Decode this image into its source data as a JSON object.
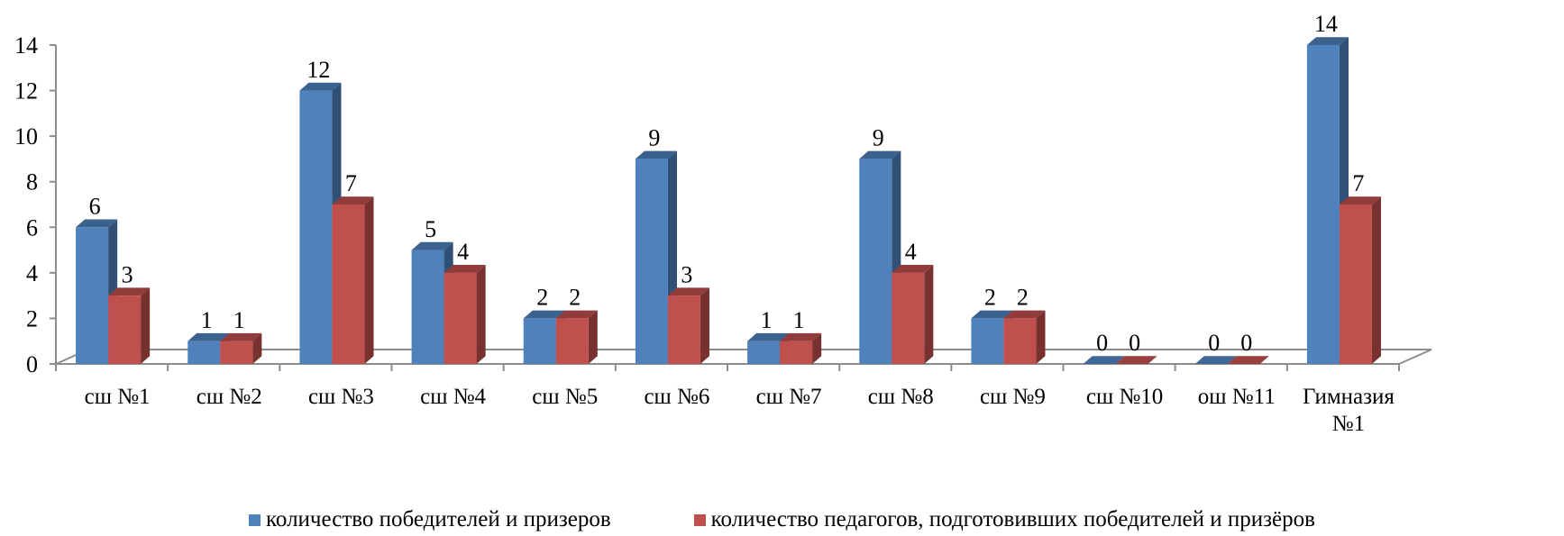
{
  "chart_data": {
    "type": "bar",
    "style": "3d-clustered-column",
    "title": "",
    "xlabel": "",
    "ylabel": "",
    "ylim": [
      0,
      14
    ],
    "yticks": [
      0,
      2,
      4,
      6,
      8,
      10,
      12,
      14
    ],
    "grid": false,
    "legend_position": "bottom",
    "categories": [
      "сш №1",
      "сш №2",
      "сш №3",
      "сш №4",
      "сш №5",
      "сш №6",
      "сш №7",
      "сш №8",
      "сш №9",
      "сш №10",
      "ош №11",
      "Гимназия №1"
    ],
    "series": [
      {
        "name": "количество победителей и призеров",
        "color": "#4f81bd",
        "values": [
          6,
          1,
          12,
          5,
          2,
          9,
          1,
          9,
          2,
          0,
          0,
          14
        ]
      },
      {
        "name": "количество педагогов, подготовивших победителей и призёров",
        "color": "#c0504d",
        "values": [
          3,
          1,
          7,
          4,
          2,
          3,
          1,
          4,
          2,
          0,
          0,
          7
        ]
      }
    ]
  }
}
